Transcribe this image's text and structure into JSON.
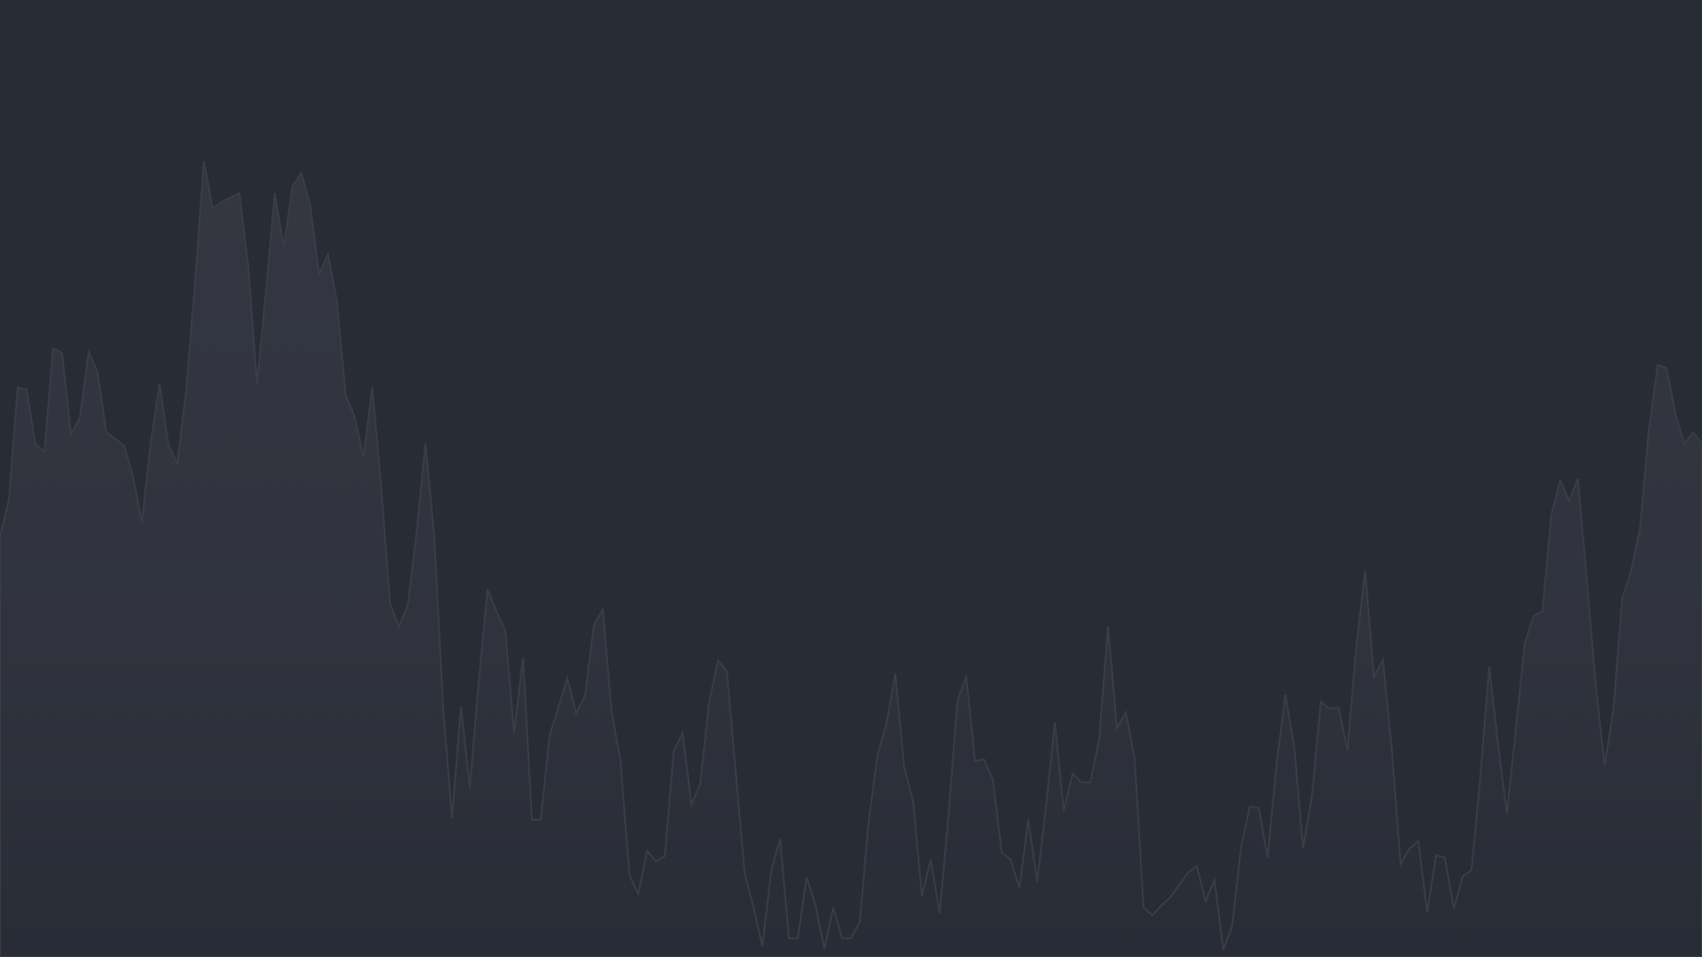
{
  "background": {
    "color": "#282c35",
    "wave_fill_top": "#343741",
    "wave_fill_bottom": "#282c35",
    "wave_stroke": "#3a3d46"
  }
}
